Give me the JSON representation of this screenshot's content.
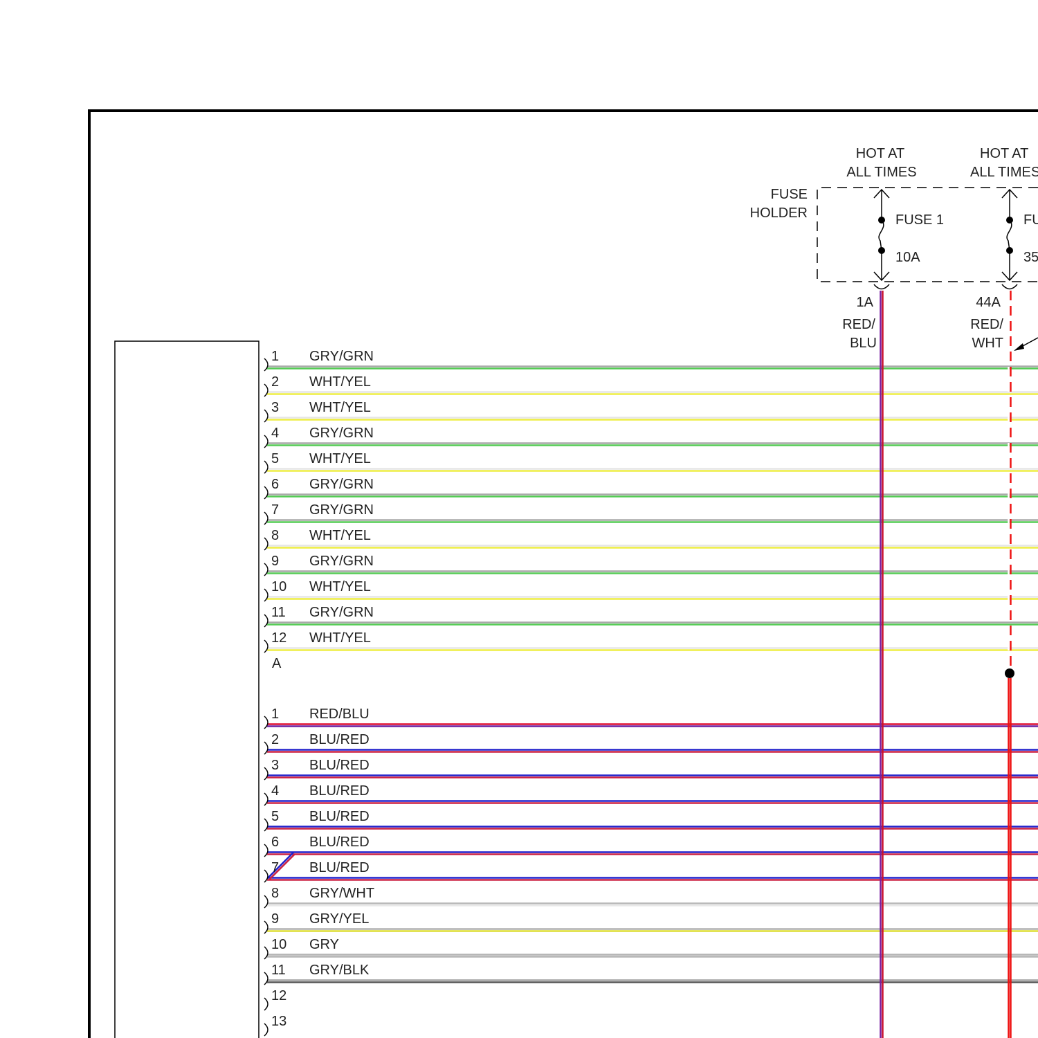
{
  "fuse_holder": {
    "label_line1": "FUSE",
    "label_line2": "HOLDER",
    "fuses": [
      {
        "hot_line1": "HOT AT",
        "hot_line2": "ALL TIMES",
        "name": "FUSE 1",
        "rating": "10A",
        "circuit": "1A",
        "wire_line1": "RED/",
        "wire_line2": "BLU",
        "wire_colors": [
          "#c8102e",
          "#7a1fa2"
        ],
        "style": "solid"
      },
      {
        "hot_line1": "HOT AT",
        "hot_line2": "ALL TIMES",
        "name": "FU",
        "rating": "35",
        "circuit": "44A",
        "wire_line1": "RED/",
        "wire_line2": "WHT",
        "wire_colors": [
          "#ee1111",
          "#ffffff"
        ],
        "style": "dashed"
      }
    ]
  },
  "connector_a": {
    "label": "A",
    "pins": [
      {
        "pin": "1",
        "wire": "GRY/GRN",
        "colors": [
          "#a8a8a8",
          "#55cc55"
        ]
      },
      {
        "pin": "2",
        "wire": "WHT/YEL",
        "colors": [
          "#e6e6e6",
          "#eeee44"
        ]
      },
      {
        "pin": "3",
        "wire": "WHT/YEL",
        "colors": [
          "#e6e6e6",
          "#eeee44"
        ]
      },
      {
        "pin": "4",
        "wire": "GRY/GRN",
        "colors": [
          "#a8a8a8",
          "#55cc55"
        ]
      },
      {
        "pin": "5",
        "wire": "WHT/YEL",
        "colors": [
          "#e6e6e6",
          "#eeee44"
        ]
      },
      {
        "pin": "6",
        "wire": "GRY/GRN",
        "colors": [
          "#a8a8a8",
          "#55cc55"
        ]
      },
      {
        "pin": "7",
        "wire": "GRY/GRN",
        "colors": [
          "#a8a8a8",
          "#55cc55"
        ]
      },
      {
        "pin": "8",
        "wire": "WHT/YEL",
        "colors": [
          "#e6e6e6",
          "#eeee44"
        ]
      },
      {
        "pin": "9",
        "wire": "GRY/GRN",
        "colors": [
          "#a8a8a8",
          "#55cc55"
        ]
      },
      {
        "pin": "10",
        "wire": "WHT/YEL",
        "colors": [
          "#e6e6e6",
          "#eeee44"
        ]
      },
      {
        "pin": "11",
        "wire": "GRY/GRN",
        "colors": [
          "#a8a8a8",
          "#55cc55"
        ]
      },
      {
        "pin": "12",
        "wire": "WHT/YEL",
        "colors": [
          "#e6e6e6",
          "#eeee44"
        ]
      }
    ]
  },
  "connector_b": {
    "pins": [
      {
        "pin": "1",
        "wire": "RED/BLU",
        "colors": [
          "#dd1133",
          "#6a1fa0"
        ]
      },
      {
        "pin": "2",
        "wire": "BLU/RED",
        "colors": [
          "#2222cc",
          "#cc2244"
        ]
      },
      {
        "pin": "3",
        "wire": "BLU/RED",
        "colors": [
          "#2222cc",
          "#cc2244"
        ]
      },
      {
        "pin": "4",
        "wire": "BLU/RED",
        "colors": [
          "#2222cc",
          "#cc2244"
        ]
      },
      {
        "pin": "5",
        "wire": "BLU/RED",
        "colors": [
          "#2222cc",
          "#cc2244"
        ]
      },
      {
        "pin": "6",
        "wire": "BLU/RED",
        "colors": [
          "#2222cc",
          "#cc2244"
        ]
      },
      {
        "pin": "7",
        "wire": "BLU/RED",
        "colors": [
          "#2222cc",
          "#cc2244"
        ]
      },
      {
        "pin": "8",
        "wire": "GRY/WHT",
        "colors": [
          "#b8b8b8",
          "#e8e8e8"
        ]
      },
      {
        "pin": "9",
        "wire": "GRY/YEL",
        "colors": [
          "#b0b0b0",
          "#dddd33"
        ]
      },
      {
        "pin": "10",
        "wire": "GRY",
        "colors": [
          "#b4b4b4",
          "#b4b4b4"
        ]
      },
      {
        "pin": "11",
        "wire": "GRY/BLK",
        "colors": [
          "#a4a4a4",
          "#555555"
        ]
      },
      {
        "pin": "12",
        "wire": "",
        "colors": []
      },
      {
        "pin": "13",
        "wire": "",
        "colors": []
      }
    ]
  }
}
